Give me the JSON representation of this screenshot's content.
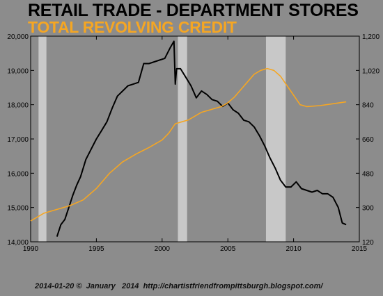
{
  "chart_data": {
    "type": "line",
    "title": "RETAIL TRADE - DEPARTMENT STORES",
    "subtitle": "TOTAL REVOLVING CREDIT",
    "xlim": [
      1990,
      2015
    ],
    "x_ticks": [
      "1990",
      "1995",
      "2000",
      "2005",
      "2010",
      "2015"
    ],
    "left_axis": {
      "ylim": [
        14000,
        20000
      ],
      "ticks": [
        "14,000",
        "15,000",
        "16,000",
        "17,000",
        "18,000",
        "19,000",
        "20,000"
      ]
    },
    "right_axis": {
      "ylim": [
        120,
        1200
      ],
      "ticks": [
        "120",
        "300",
        "480",
        "660",
        "840",
        "1,020",
        "1,200"
      ]
    },
    "recessions": [
      [
        1990.6,
        1991.2
      ],
      [
        2001.2,
        2001.9
      ],
      [
        2007.9,
        2009.4
      ]
    ],
    "series": [
      {
        "axis": "left",
        "color": "#000000",
        "x": [
          1992.0,
          1992.3,
          1992.6,
          1992.9,
          1993.2,
          1993.5,
          1993.8,
          1994.2,
          1994.6,
          1995.0,
          1995.4,
          1995.8,
          1996.2,
          1996.6,
          1997.0,
          1997.4,
          1997.8,
          1998.2,
          1998.6,
          1999.0,
          1999.4,
          1999.8,
          2000.2,
          2000.6,
          2000.9,
          2001.0,
          2001.1,
          2001.4,
          2001.8,
          2002.2,
          2002.6,
          2003.0,
          2003.4,
          2003.8,
          2004.2,
          2004.6,
          2005.0,
          2005.4,
          2005.8,
          2006.2,
          2006.6,
          2007.0,
          2007.4,
          2007.8,
          2008.2,
          2008.6,
          2009.0,
          2009.4,
          2009.8,
          2010.2,
          2010.6,
          2011.0,
          2011.4,
          2011.8,
          2012.2,
          2012.6,
          2013.0,
          2013.4,
          2013.7,
          2014.0
        ],
        "y": [
          14150,
          14500,
          14650,
          15000,
          15350,
          15650,
          15900,
          16400,
          16700,
          17000,
          17250,
          17500,
          17900,
          18250,
          18400,
          18550,
          18600,
          18650,
          19200,
          19200,
          19250,
          19300,
          19350,
          19650,
          19850,
          18600,
          19050,
          19050,
          18800,
          18550,
          18200,
          18400,
          18300,
          18150,
          18100,
          17950,
          18050,
          17850,
          17750,
          17550,
          17500,
          17350,
          17100,
          16800,
          16450,
          16150,
          15800,
          15600,
          15600,
          15750,
          15550,
          15500,
          15450,
          15500,
          15400,
          15400,
          15300,
          15000,
          14550,
          14500
        ]
      },
      {
        "axis": "right",
        "color": "#f5a623",
        "x": [
          1990.0,
          1991.0,
          1992.0,
          1993.0,
          1994.0,
          1995.0,
          1996.0,
          1997.0,
          1998.0,
          1999.0,
          2000.0,
          2000.5,
          2001.0,
          2001.5,
          2002.0,
          2002.5,
          2003.0,
          2003.5,
          2004.0,
          2004.5,
          2005.0,
          2005.5,
          2006.0,
          2006.5,
          2007.0,
          2007.5,
          2008.0,
          2008.5,
          2009.0,
          2009.5,
          2010.0,
          2010.5,
          2011.0,
          2012.0,
          2013.0,
          2014.0
        ],
        "y": [
          230,
          270,
          290,
          310,
          340,
          400,
          480,
          540,
          580,
          615,
          655,
          690,
          740,
          750,
          760,
          780,
          800,
          810,
          820,
          830,
          850,
          880,
          920,
          960,
          1000,
          1020,
          1030,
          1020,
          990,
          940,
          890,
          840,
          830,
          835,
          845,
          855
        ]
      }
    ]
  },
  "footer": {
    "date": "2014-01-20",
    "copyright_symbol": "©",
    "month": "January",
    "year": "2014",
    "url": "http://chartistfriendfrompittsburgh.blogspot.com/"
  }
}
